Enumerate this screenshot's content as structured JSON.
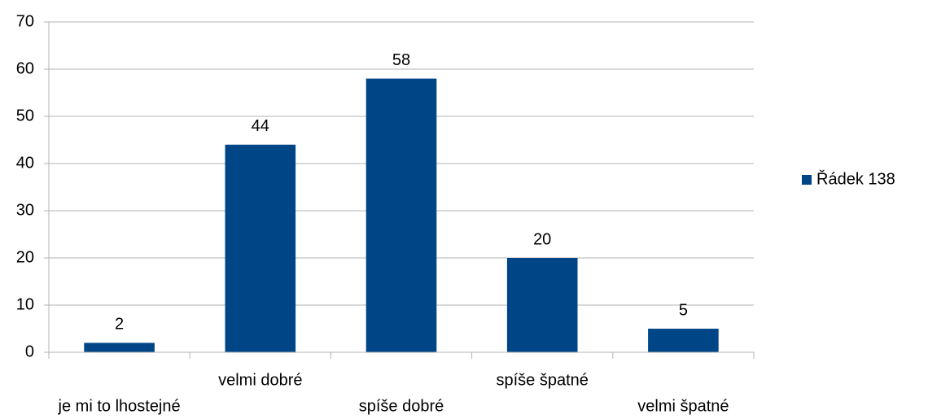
{
  "chart_data": {
    "type": "bar",
    "categories": [
      "je mi to lhostejné",
      "velmi dobré",
      "spíše dobré",
      "spíše špatné",
      "velmi špatné"
    ],
    "series": [
      {
        "name": "Řádek 138",
        "color": "#004586",
        "values": [
          2,
          44,
          58,
          20,
          5
        ]
      }
    ],
    "ylim": [
      0,
      70
    ],
    "yticks": [
      0,
      10,
      20,
      30,
      40,
      50,
      60,
      70
    ],
    "grid": true,
    "legend": "right"
  }
}
